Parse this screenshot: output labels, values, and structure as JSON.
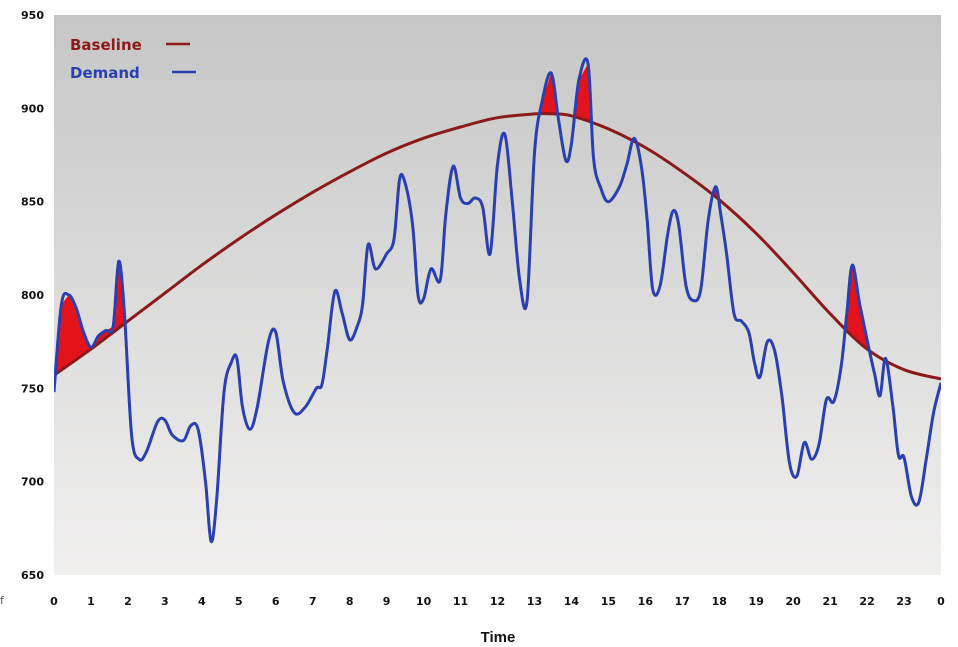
{
  "stray_text": "f",
  "chart_data": {
    "type": "line",
    "title": "",
    "xlabel": "Time",
    "ylabel": "",
    "ylim": [
      650,
      950
    ],
    "xlim": [
      0,
      24
    ],
    "yticks": [
      650,
      700,
      750,
      800,
      850,
      900,
      950
    ],
    "xtick_labels": [
      "0",
      "1",
      "2",
      "3",
      "4",
      "5",
      "6",
      "7",
      "8",
      "9",
      "10",
      "11",
      "12",
      "13",
      "14",
      "15",
      "16",
      "17",
      "18",
      "19",
      "20",
      "21",
      "22",
      "23",
      "0"
    ],
    "grid": false,
    "legend_position": "top-left",
    "colors": {
      "baseline": "#8b1a1a",
      "demand": "#2a3fb0",
      "excess_fill": "#e3131b"
    },
    "series": [
      {
        "name": "Baseline",
        "x": [
          0,
          1,
          2,
          3,
          4,
          5,
          6,
          7,
          8,
          9,
          10,
          11,
          12,
          13,
          13.5,
          14,
          15,
          16,
          17,
          18,
          19,
          20,
          21,
          22,
          23,
          24
        ],
        "values": [
          757,
          771,
          786,
          801,
          816,
          830,
          843,
          855,
          866,
          876,
          884,
          890,
          895,
          897,
          897,
          896,
          889,
          879,
          866,
          851,
          833,
          812,
          790,
          771,
          760,
          755
        ]
      },
      {
        "name": "Demand",
        "x": [
          0,
          0.2,
          0.4,
          0.6,
          0.8,
          1.0,
          1.2,
          1.4,
          1.6,
          1.75,
          1.9,
          2.1,
          2.3,
          2.5,
          2.8,
          3.0,
          3.2,
          3.5,
          3.7,
          3.9,
          4.1,
          4.25,
          4.4,
          4.6,
          4.8,
          4.95,
          5.1,
          5.3,
          5.5,
          5.8,
          6.0,
          6.2,
          6.5,
          6.8,
          7.1,
          7.25,
          7.4,
          7.6,
          7.8,
          8.0,
          8.2,
          8.35,
          8.5,
          8.7,
          9.0,
          9.2,
          9.35,
          9.5,
          9.7,
          9.85,
          10.0,
          10.2,
          10.45,
          10.6,
          10.8,
          11.0,
          11.2,
          11.4,
          11.6,
          11.8,
          12.0,
          12.2,
          12.4,
          12.6,
          12.8,
          13.0,
          13.2,
          13.45,
          13.65,
          13.85,
          14.0,
          14.2,
          14.45,
          14.6,
          14.8,
          15.0,
          15.3,
          15.5,
          15.7,
          15.9,
          16.05,
          16.2,
          16.4,
          16.6,
          16.75,
          16.9,
          17.1,
          17.3,
          17.5,
          17.7,
          17.9,
          18.05,
          18.2,
          18.4,
          18.6,
          18.8,
          18.95,
          19.1,
          19.3,
          19.5,
          19.7,
          19.9,
          20.1,
          20.3,
          20.5,
          20.7,
          20.9,
          21.1,
          21.3,
          21.45,
          21.6,
          21.8,
          22.0,
          22.2,
          22.35,
          22.5,
          22.7,
          22.85,
          23.0,
          23.2,
          23.4,
          23.6,
          23.8,
          24.0
        ],
        "values": [
          748,
          795,
          800,
          793,
          780,
          772,
          778,
          781,
          783,
          818,
          792,
          725,
          712,
          716,
          732,
          733,
          725,
          722,
          730,
          728,
          700,
          668,
          690,
          748,
          764,
          766,
          740,
          728,
          740,
          775,
          780,
          754,
          737,
          740,
          750,
          752,
          772,
          802,
          790,
          776,
          783,
          795,
          827,
          814,
          822,
          830,
          862,
          860,
          838,
          800,
          798,
          814,
          808,
          843,
          869,
          852,
          849,
          852,
          847,
          822,
          870,
          886,
          850,
          808,
          797,
          876,
          903,
          919,
          894,
          872,
          881,
          915,
          924,
          873,
          857,
          850,
          858,
          870,
          884,
          868,
          840,
          803,
          805,
          832,
          845,
          838,
          805,
          797,
          803,
          840,
          858,
          842,
          822,
          790,
          786,
          780,
          764,
          756,
          775,
          770,
          745,
          710,
          703,
          721,
          712,
          720,
          744,
          743,
          762,
          790,
          816,
          795,
          776,
          758,
          746,
          766,
          740,
          714,
          713,
          692,
          689,
          712,
          737,
          753
        ]
      }
    ]
  }
}
